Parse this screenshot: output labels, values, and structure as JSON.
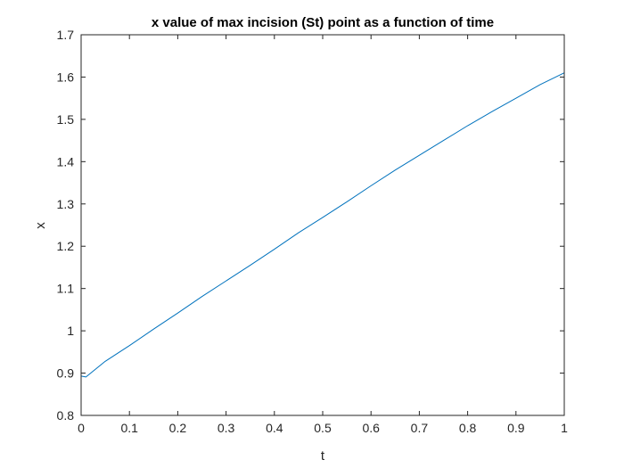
{
  "chart_data": {
    "type": "line",
    "title": "x value of max incision (St) point as a function of time",
    "xlabel": "t",
    "ylabel": "x",
    "xlim": [
      0,
      1
    ],
    "ylim": [
      0.8,
      1.7
    ],
    "x_ticks": [
      0,
      0.1,
      0.2,
      0.3,
      0.4,
      0.5,
      0.6,
      0.7,
      0.8,
      0.9,
      1
    ],
    "x_tick_labels": [
      "0",
      "0.1",
      "0.2",
      "0.3",
      "0.4",
      "0.5",
      "0.6",
      "0.7",
      "0.8",
      "0.9",
      "1"
    ],
    "y_ticks": [
      0.8,
      0.9,
      1,
      1.1,
      1.2,
      1.3,
      1.4,
      1.5,
      1.6,
      1.7
    ],
    "y_tick_labels": [
      "0.8",
      "0.9",
      "1",
      "1.1",
      "1.2",
      "1.3",
      "1.4",
      "1.5",
      "1.6",
      "1.7"
    ],
    "grid": false,
    "box": true,
    "series": [
      {
        "color": "#0072bd",
        "x": [
          0,
          0.01,
          0.05,
          0.1,
          0.15,
          0.2,
          0.25,
          0.3,
          0.35,
          0.4,
          0.45,
          0.5,
          0.55,
          0.6,
          0.65,
          0.7,
          0.75,
          0.8,
          0.85,
          0.9,
          0.95,
          1.0
        ],
        "y": [
          0.893,
          0.891,
          0.928,
          0.965,
          1.004,
          1.042,
          1.081,
          1.118,
          1.155,
          1.193,
          1.232,
          1.268,
          1.305,
          1.343,
          1.38,
          1.415,
          1.45,
          1.485,
          1.518,
          1.55,
          1.582,
          1.61
        ]
      }
    ]
  }
}
